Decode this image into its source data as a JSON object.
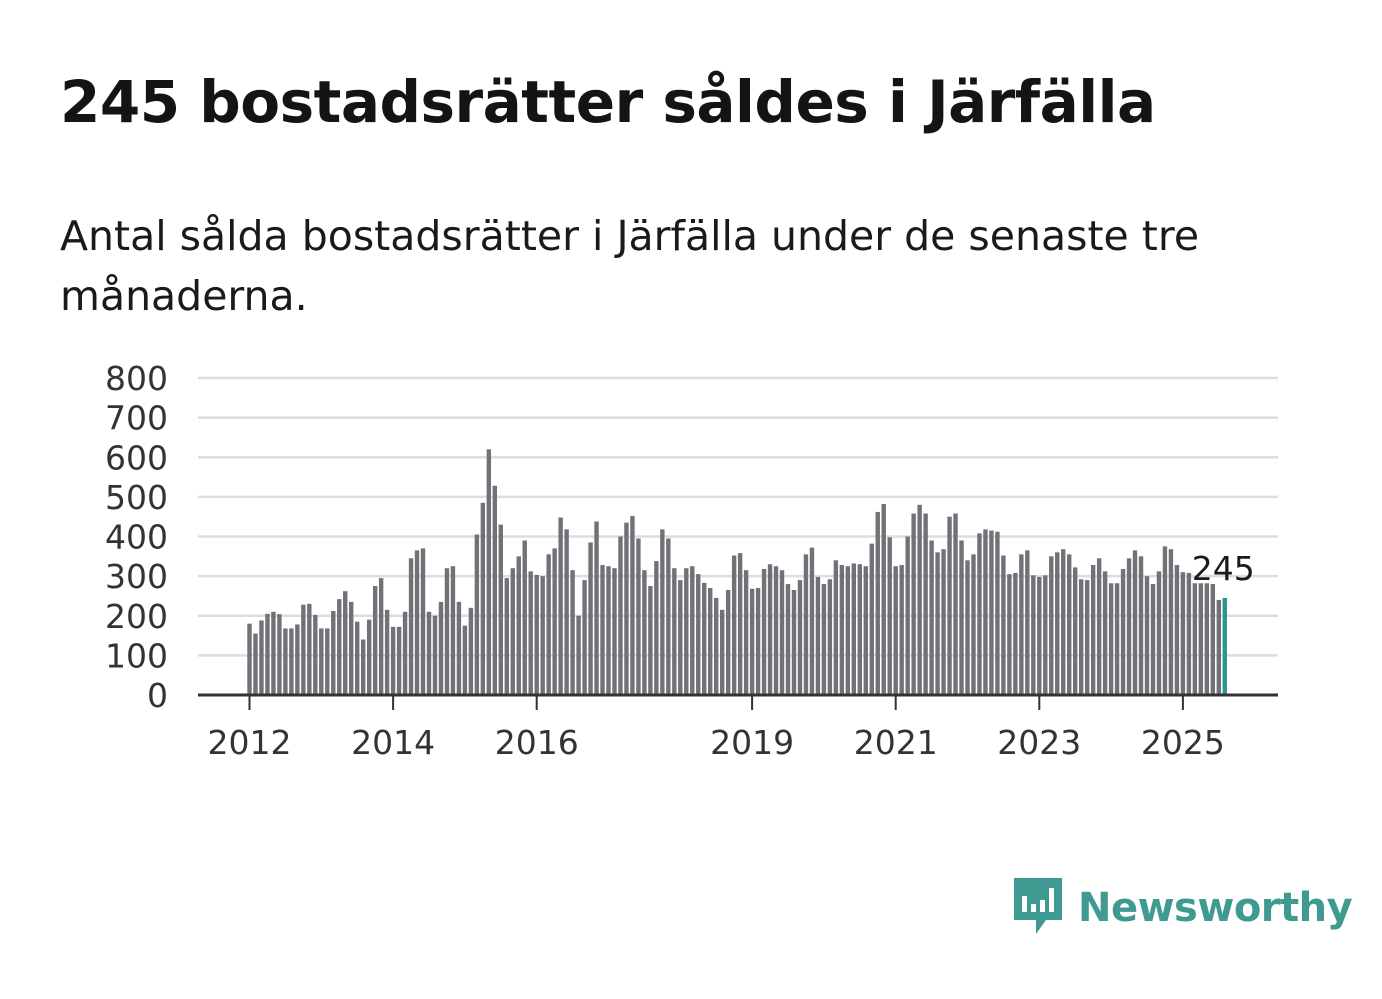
{
  "title": "245 bostadsrätter såldes i Järfälla",
  "subtitle": "Antal sålda bostadsrätter i Järfälla under de senaste tre månaderna.",
  "brand": {
    "name": "Newsworthy",
    "icon": "newsworthy-logo-icon",
    "color": "#3f9b92"
  },
  "chart_data": {
    "type": "bar",
    "title": "",
    "xlabel": "",
    "ylabel": "",
    "ylim": [
      0,
      800
    ],
    "yticks": [
      0,
      100,
      200,
      300,
      400,
      500,
      600,
      700,
      800
    ],
    "xticks": [
      "2012",
      "2014",
      "2016",
      "2019",
      "2021",
      "2023",
      "2025"
    ],
    "grid": true,
    "colors": {
      "bar": "#727178",
      "highlight": "#2a9690",
      "grid": "#dddddd",
      "axis": "#333333"
    },
    "last_label": "245",
    "start": "2012-01",
    "values": [
      180,
      155,
      188,
      205,
      210,
      204,
      168,
      168,
      178,
      228,
      230,
      202,
      168,
      168,
      212,
      242,
      262,
      235,
      185,
      140,
      190,
      275,
      295,
      215,
      172,
      172,
      210,
      345,
      365,
      370,
      210,
      200,
      235,
      320,
      325,
      235,
      175,
      220,
      405,
      485,
      620,
      528,
      430,
      295,
      320,
      350,
      390,
      312,
      303,
      300,
      355,
      370,
      448,
      418,
      315,
      200,
      290,
      385,
      438,
      328,
      325,
      320,
      400,
      435,
      452,
      395,
      315,
      275,
      338,
      418,
      395,
      320,
      290,
      320,
      325,
      305,
      283,
      270,
      245,
      215,
      265,
      352,
      358,
      315,
      268,
      270,
      318,
      330,
      325,
      315,
      280,
      265,
      290,
      355,
      372,
      298,
      280,
      292,
      340,
      328,
      325,
      332,
      330,
      325,
      382,
      462,
      482,
      398,
      325,
      328,
      400,
      458,
      480,
      458,
      390,
      360,
      368,
      450,
      458,
      390,
      340,
      355,
      408,
      418,
      415,
      412,
      352,
      305,
      308,
      355,
      365,
      302,
      298,
      302,
      350,
      360,
      368,
      355,
      322,
      292,
      290,
      328,
      345,
      312,
      282,
      282,
      318,
      345,
      365,
      350,
      300,
      280,
      312,
      375,
      368,
      328,
      310,
      308,
      282,
      282,
      282,
      280,
      240,
      245
    ]
  }
}
